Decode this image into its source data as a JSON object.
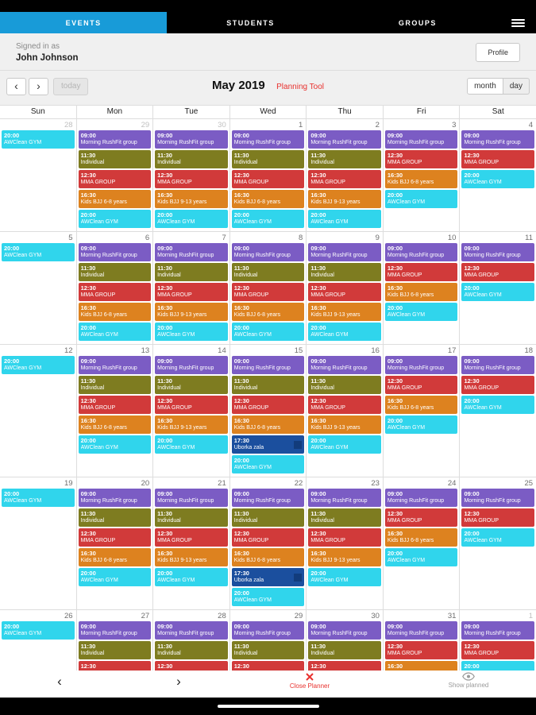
{
  "app": {
    "tabs": [
      {
        "label": "EVENTS",
        "active": true
      },
      {
        "label": "STUDENTS",
        "active": false
      },
      {
        "label": "GROUPS",
        "active": false
      }
    ],
    "menu_icon": "hamburger-icon"
  },
  "account": {
    "signed_in_label": "Signed in as",
    "name": "John Johnson",
    "profile_button": "Profile"
  },
  "toolbar": {
    "prev": "‹",
    "next": "›",
    "today": "today",
    "title": "May 2019",
    "subtitle": "Planning Tool",
    "month_button": "month",
    "day_button": "day"
  },
  "colors": {
    "tab_active": "#189bd8",
    "accent_red": "#e8312e",
    "event_purple": "#7b5cc4",
    "event_olive": "#7e7c20",
    "event_red": "#d13a3a",
    "event_orange": "#dd821f",
    "event_cyan": "#30d5ec",
    "event_navy": "#1b4f9e"
  },
  "calendar": {
    "day_headers": [
      "Sun",
      "Mon",
      "Tue",
      "Wed",
      "Thu",
      "Fri",
      "Sat"
    ],
    "event_types": {
      "rushfit": {
        "time": "09:00",
        "title": "Morning RushFit group",
        "color": "#7b5cc4"
      },
      "individual": {
        "time": "11:30",
        "title": "Individual",
        "color": "#7e7c20"
      },
      "mma": {
        "time": "12:30",
        "title": "MMA GROUP",
        "color": "#d13a3a"
      },
      "bjj68": {
        "time": "16:30",
        "title": "Kids BJJ 6-8 years",
        "color": "#dd821f"
      },
      "bjj913": {
        "time": "16:30",
        "title": "Kids BJJ 9-13 years",
        "color": "#dd821f"
      },
      "awclean": {
        "time": "20:00",
        "title": "AWClean GYM",
        "color": "#30d5ec"
      },
      "uborka": {
        "time": "17:30",
        "title": "Uborka zala",
        "color": "#1b4f9e",
        "badge": true,
        "badge_color": "#123c7c"
      }
    },
    "weeks": [
      {
        "days": [
          {
            "date": "28",
            "muted": true,
            "events": [
              "awclean"
            ]
          },
          {
            "date": "29",
            "muted": true,
            "events": [
              "rushfit",
              "individual",
              "mma",
              "bjj68",
              "awclean"
            ]
          },
          {
            "date": "30",
            "muted": true,
            "events": [
              "rushfit",
              "individual",
              "mma",
              "bjj913",
              "awclean"
            ]
          },
          {
            "date": "1",
            "events": [
              "rushfit",
              "individual",
              "mma",
              "bjj68",
              "awclean"
            ]
          },
          {
            "date": "2",
            "events": [
              "rushfit",
              "individual",
              "mma",
              "bjj913",
              "awclean"
            ]
          },
          {
            "date": "3",
            "events": [
              "rushfit",
              "mma",
              "bjj68",
              "awclean"
            ]
          },
          {
            "date": "4",
            "events": [
              "rushfit",
              "mma",
              "awclean"
            ]
          }
        ]
      },
      {
        "days": [
          {
            "date": "5",
            "events": [
              "awclean"
            ]
          },
          {
            "date": "6",
            "events": [
              "rushfit",
              "individual",
              "mma",
              "bjj68",
              "awclean"
            ]
          },
          {
            "date": "7",
            "events": [
              "rushfit",
              "individual",
              "mma",
              "bjj913",
              "awclean"
            ]
          },
          {
            "date": "8",
            "events": [
              "rushfit",
              "individual",
              "mma",
              "bjj68",
              "awclean"
            ]
          },
          {
            "date": "9",
            "events": [
              "rushfit",
              "individual",
              "mma",
              "bjj913",
              "awclean"
            ]
          },
          {
            "date": "10",
            "events": [
              "rushfit",
              "mma",
              "bjj68",
              "awclean"
            ]
          },
          {
            "date": "11",
            "events": [
              "rushfit",
              "mma",
              "awclean"
            ]
          }
        ]
      },
      {
        "days": [
          {
            "date": "12",
            "events": [
              "awclean"
            ]
          },
          {
            "date": "13",
            "events": [
              "rushfit",
              "individual",
              "mma",
              "bjj68",
              "awclean"
            ]
          },
          {
            "date": "14",
            "events": [
              "rushfit",
              "individual",
              "mma",
              "bjj913",
              "awclean"
            ]
          },
          {
            "date": "15",
            "events": [
              "rushfit",
              "individual",
              "mma",
              "bjj68",
              "uborka",
              "awclean"
            ]
          },
          {
            "date": "16",
            "events": [
              "rushfit",
              "individual",
              "mma",
              "bjj913",
              "awclean"
            ]
          },
          {
            "date": "17",
            "events": [
              "rushfit",
              "mma",
              "bjj68",
              "awclean"
            ]
          },
          {
            "date": "18",
            "events": [
              "rushfit",
              "mma",
              "awclean"
            ]
          }
        ]
      },
      {
        "days": [
          {
            "date": "19",
            "events": [
              "awclean"
            ]
          },
          {
            "date": "20",
            "events": [
              "rushfit",
              "individual",
              "mma",
              "bjj68",
              "awclean"
            ]
          },
          {
            "date": "21",
            "events": [
              "rushfit",
              "individual",
              "mma",
              "bjj913",
              "awclean"
            ]
          },
          {
            "date": "22",
            "events": [
              "rushfit",
              "individual",
              "mma",
              "bjj68",
              "uborka",
              "awclean"
            ]
          },
          {
            "date": "23",
            "events": [
              "rushfit",
              "individual",
              "mma",
              "bjj913",
              "awclean"
            ]
          },
          {
            "date": "24",
            "events": [
              "rushfit",
              "mma",
              "bjj68",
              "awclean"
            ]
          },
          {
            "date": "25",
            "events": [
              "rushfit",
              "mma",
              "awclean"
            ]
          }
        ]
      },
      {
        "days": [
          {
            "date": "26",
            "events": [
              "awclean"
            ]
          },
          {
            "date": "27",
            "events": [
              "rushfit",
              "individual",
              "mma",
              "bjj68",
              "awclean"
            ]
          },
          {
            "date": "28",
            "events": [
              "rushfit",
              "individual",
              "mma",
              "bjj913",
              "awclean"
            ]
          },
          {
            "date": "29",
            "events": [
              "rushfit",
              "individual",
              "mma",
              "bjj68",
              "awclean"
            ]
          },
          {
            "date": "30",
            "events": [
              "rushfit",
              "individual",
              "mma",
              "bjj913",
              "awclean"
            ]
          },
          {
            "date": "31",
            "events": [
              "rushfit",
              "mma",
              "bjj68",
              "awclean"
            ]
          },
          {
            "date": "1",
            "muted": true,
            "events": [
              "rushfit",
              "mma",
              "awclean"
            ]
          }
        ]
      }
    ]
  },
  "footer": {
    "prev": "‹",
    "next": "›",
    "close_label": "Close Planner",
    "show_planned_label": "Show planned"
  }
}
